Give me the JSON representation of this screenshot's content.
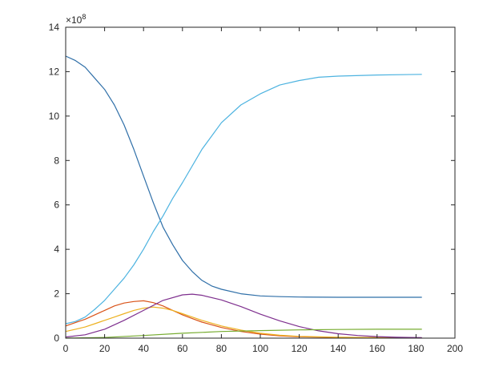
{
  "chart_data": {
    "type": "line",
    "title": "",
    "xlabel": "",
    "ylabel": "",
    "y_exponent_label": "×10",
    "y_exponent_power": "8",
    "xlim": [
      0,
      200
    ],
    "ylim": [
      0,
      14
    ],
    "xticks": [
      "0",
      "20",
      "40",
      "60",
      "80",
      "100",
      "120",
      "140",
      "160",
      "180",
      "200"
    ],
    "yticks": [
      "0",
      "2",
      "4",
      "6",
      "8",
      "10",
      "12",
      "14"
    ],
    "grid": false,
    "legend": "none",
    "series": [
      {
        "color": "#2f6fa8",
        "x": [
          0,
          5,
          10,
          15,
          20,
          25,
          30,
          35,
          40,
          45,
          50,
          55,
          60,
          65,
          70,
          75,
          80,
          90,
          100,
          110,
          120,
          140,
          160,
          183
        ],
        "values": [
          12.7,
          12.5,
          12.2,
          11.7,
          11.2,
          10.5,
          9.6,
          8.5,
          7.3,
          6.1,
          5.0,
          4.2,
          3.5,
          3.0,
          2.6,
          2.35,
          2.2,
          2.0,
          1.9,
          1.87,
          1.85,
          1.84,
          1.84,
          1.84
        ]
      },
      {
        "color": "#4db3e0",
        "x": [
          0,
          5,
          10,
          15,
          20,
          25,
          30,
          35,
          40,
          45,
          50,
          55,
          60,
          70,
          80,
          90,
          100,
          110,
          120,
          130,
          140,
          160,
          183
        ],
        "values": [
          0.65,
          0.75,
          0.95,
          1.3,
          1.7,
          2.2,
          2.7,
          3.3,
          4.0,
          4.8,
          5.5,
          6.3,
          7.0,
          8.5,
          9.7,
          10.5,
          11.0,
          11.4,
          11.6,
          11.75,
          11.8,
          11.85,
          11.88
        ]
      },
      {
        "color": "#d95319",
        "x": [
          0,
          5,
          10,
          15,
          20,
          25,
          30,
          35,
          40,
          45,
          50,
          55,
          60,
          65,
          70,
          80,
          90,
          100,
          110,
          120,
          140,
          160,
          183
        ],
        "values": [
          0.55,
          0.7,
          0.85,
          1.05,
          1.25,
          1.45,
          1.58,
          1.65,
          1.68,
          1.6,
          1.45,
          1.25,
          1.05,
          0.88,
          0.72,
          0.48,
          0.3,
          0.18,
          0.1,
          0.06,
          0.03,
          0.02,
          0.01
        ]
      },
      {
        "color": "#edb120",
        "x": [
          0,
          5,
          10,
          15,
          20,
          25,
          30,
          35,
          40,
          45,
          50,
          55,
          60,
          65,
          70,
          80,
          90,
          100,
          110,
          120,
          140,
          160,
          183
        ],
        "values": [
          0.3,
          0.4,
          0.5,
          0.65,
          0.8,
          0.95,
          1.1,
          1.25,
          1.35,
          1.4,
          1.35,
          1.25,
          1.1,
          0.95,
          0.8,
          0.55,
          0.36,
          0.22,
          0.13,
          0.08,
          0.04,
          0.02,
          0.01
        ]
      },
      {
        "color": "#7e2f8e",
        "x": [
          0,
          10,
          20,
          30,
          40,
          50,
          60,
          65,
          70,
          80,
          90,
          100,
          110,
          120,
          130,
          140,
          150,
          160,
          170,
          183
        ],
        "values": [
          0.05,
          0.15,
          0.4,
          0.8,
          1.25,
          1.7,
          1.95,
          1.98,
          1.93,
          1.72,
          1.42,
          1.08,
          0.78,
          0.52,
          0.33,
          0.2,
          0.12,
          0.07,
          0.04,
          0.02
        ]
      },
      {
        "color": "#77ac30",
        "x": [
          0,
          20,
          40,
          60,
          80,
          100,
          120,
          140,
          160,
          183
        ],
        "values": [
          0.0,
          0.03,
          0.12,
          0.22,
          0.3,
          0.34,
          0.37,
          0.39,
          0.4,
          0.4
        ]
      }
    ]
  }
}
